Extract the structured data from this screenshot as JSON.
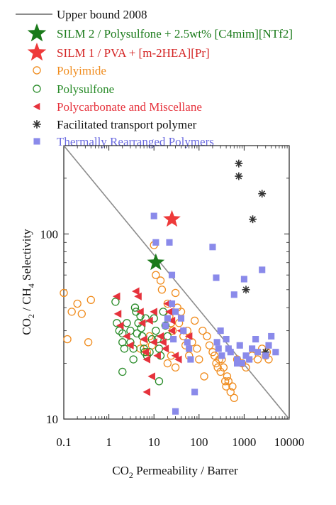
{
  "chart_data": {
    "type": "scatter",
    "xscale": "log",
    "yscale": "log",
    "xlim": [
      0.1,
      10000
    ],
    "ylim": [
      10,
      300
    ],
    "xlabel": "CO2 Permeability / Barrer",
    "ylabel": "CO2 / CH4 Selectivity",
    "x_ticks": [
      "0.1",
      "1",
      "10",
      "100",
      "1000",
      "10000"
    ],
    "y_ticks": [
      {
        "value": 10,
        "label": "10"
      },
      {
        "value": 100,
        "label": "100"
      }
    ],
    "grid": false,
    "legend_position": "top",
    "upper_bound": {
      "name": "Upper bound 2008",
      "color": "#8c8c8c",
      "points": [
        [
          0.1,
          300
        ],
        [
          10000,
          10
        ]
      ]
    },
    "series": [
      {
        "name": "SILM 2 / Polysulfone + 2.5wt% [C4mim][NTf2]",
        "marker": "star",
        "color": "#1a7a1a",
        "points": [
          [
            11,
            70
          ]
        ]
      },
      {
        "name": "SILM 1 / PVA + [m-2HEA][Pr]",
        "marker": "star",
        "color": "#ee3a3a",
        "points": [
          [
            25,
            120
          ]
        ]
      },
      {
        "name": "Polyimide",
        "marker": "open-circle",
        "color": "#f08c1e",
        "points": [
          [
            0.1,
            48
          ],
          [
            0.12,
            27
          ],
          [
            0.15,
            38
          ],
          [
            0.2,
            42
          ],
          [
            0.25,
            37
          ],
          [
            0.4,
            44
          ],
          [
            0.35,
            26
          ],
          [
            10,
            87
          ],
          [
            11,
            60
          ],
          [
            14,
            56
          ],
          [
            15,
            50
          ],
          [
            20,
            42
          ],
          [
            22,
            36
          ],
          [
            24,
            33
          ],
          [
            26,
            30
          ],
          [
            30,
            48
          ],
          [
            33,
            40
          ],
          [
            36,
            33
          ],
          [
            40,
            38
          ],
          [
            45,
            28
          ],
          [
            50,
            25
          ],
          [
            55,
            30
          ],
          [
            60,
            22
          ],
          [
            70,
            26
          ],
          [
            80,
            34
          ],
          [
            90,
            24
          ],
          [
            100,
            21
          ],
          [
            120,
            30
          ],
          [
            130,
            17
          ],
          [
            150,
            28
          ],
          [
            170,
            25
          ],
          [
            200,
            23
          ],
          [
            220,
            22
          ],
          [
            240,
            20
          ],
          [
            260,
            19
          ],
          [
            280,
            21
          ],
          [
            300,
            18
          ],
          [
            320,
            21
          ],
          [
            350,
            19
          ],
          [
            380,
            16
          ],
          [
            400,
            15
          ],
          [
            420,
            17
          ],
          [
            450,
            16
          ],
          [
            500,
            14
          ],
          [
            550,
            15
          ],
          [
            600,
            13
          ],
          [
            700,
            21
          ],
          [
            900,
            20
          ],
          [
            1100,
            19
          ],
          [
            1500,
            22
          ],
          [
            2000,
            21
          ],
          [
            2500,
            24
          ],
          [
            3000,
            22
          ],
          [
            3500,
            21
          ],
          [
            3200,
            23
          ],
          [
            20,
            20
          ],
          [
            24,
            22
          ],
          [
            30,
            19
          ],
          [
            5,
            24
          ],
          [
            6,
            26
          ],
          [
            7,
            23
          ],
          [
            8,
            28
          ],
          [
            9,
            25
          ]
        ]
      },
      {
        "name": "Polysulfone",
        "marker": "open-circle",
        "color": "#2a8c2a",
        "points": [
          [
            1.4,
            43
          ],
          [
            1.5,
            33
          ],
          [
            1.7,
            30
          ],
          [
            2,
            29
          ],
          [
            2,
            26
          ],
          [
            2.2,
            24
          ],
          [
            2.5,
            33
          ],
          [
            3,
            30
          ],
          [
            3,
            26
          ],
          [
            3.5,
            24
          ],
          [
            3.8,
            40
          ],
          [
            4,
            38
          ],
          [
            4.2,
            29
          ],
          [
            4.5,
            33
          ],
          [
            5,
            36
          ],
          [
            5.2,
            31
          ],
          [
            5.5,
            28
          ],
          [
            6,
            24
          ],
          [
            6.2,
            23
          ],
          [
            6.5,
            35
          ],
          [
            7,
            22
          ],
          [
            8,
            23
          ],
          [
            9,
            27
          ],
          [
            10,
            35
          ],
          [
            11,
            30
          ],
          [
            12,
            27
          ],
          [
            13,
            24
          ],
          [
            14,
            22
          ],
          [
            16,
            38
          ],
          [
            18,
            32
          ],
          [
            20,
            28
          ],
          [
            2,
            18
          ],
          [
            3.5,
            21
          ],
          [
            13,
            16
          ]
        ]
      },
      {
        "name": "Polycarbonate and Miscellane",
        "marker": "triangle-left",
        "color": "#e6323c",
        "points": [
          [
            1.5,
            46
          ],
          [
            1.6,
            37
          ],
          [
            1.8,
            32
          ],
          [
            2.5,
            28
          ],
          [
            3,
            25
          ],
          [
            4,
            49
          ],
          [
            4.5,
            46
          ],
          [
            5,
            38
          ],
          [
            5.5,
            33
          ],
          [
            6,
            27
          ],
          [
            6.5,
            23
          ],
          [
            7,
            21
          ],
          [
            9,
            17
          ],
          [
            10,
            26
          ],
          [
            12,
            22
          ],
          [
            14,
            28
          ],
          [
            16,
            26
          ],
          [
            18,
            24
          ],
          [
            20,
            42
          ],
          [
            22,
            38
          ],
          [
            25,
            34
          ],
          [
            30,
            22
          ],
          [
            35,
            21
          ],
          [
            40,
            30
          ],
          [
            8,
            34
          ],
          [
            7,
            14
          ],
          [
            25,
            30
          ],
          [
            60,
            28
          ],
          [
            10,
            38
          ]
        ]
      },
      {
        "name": "Facilitated transport polymer",
        "marker": "asterisk",
        "color": "#333333",
        "points": [
          [
            760,
            240
          ],
          [
            760,
            205
          ],
          [
            2500,
            165
          ],
          [
            1550,
            120
          ],
          [
            1100,
            50
          ],
          [
            3000,
            23
          ]
        ]
      },
      {
        "name": "Thermally Rearranged   Polymers",
        "marker": "square",
        "color": "#8a8aea",
        "points": [
          [
            10,
            125
          ],
          [
            11,
            90
          ],
          [
            22,
            90
          ],
          [
            25,
            60
          ],
          [
            25,
            42
          ],
          [
            20,
            35
          ],
          [
            18,
            32
          ],
          [
            30,
            38
          ],
          [
            40,
            35
          ],
          [
            45,
            30
          ],
          [
            55,
            26
          ],
          [
            60,
            24
          ],
          [
            65,
            21
          ],
          [
            80,
            14
          ],
          [
            200,
            85
          ],
          [
            240,
            58
          ],
          [
            250,
            26
          ],
          [
            270,
            24
          ],
          [
            300,
            30
          ],
          [
            320,
            22
          ],
          [
            400,
            27
          ],
          [
            450,
            24
          ],
          [
            500,
            23
          ],
          [
            600,
            47
          ],
          [
            700,
            21
          ],
          [
            800,
            25
          ],
          [
            900,
            20
          ],
          [
            1000,
            57
          ],
          [
            1100,
            22
          ],
          [
            1300,
            21
          ],
          [
            1500,
            24
          ],
          [
            1800,
            27
          ],
          [
            2000,
            23
          ],
          [
            2500,
            64
          ],
          [
            3000,
            22
          ],
          [
            3500,
            25
          ],
          [
            4000,
            28
          ],
          [
            5000,
            23
          ],
          [
            30,
            11
          ],
          [
            27,
            27
          ],
          [
            700,
            20
          ]
        ]
      }
    ]
  }
}
